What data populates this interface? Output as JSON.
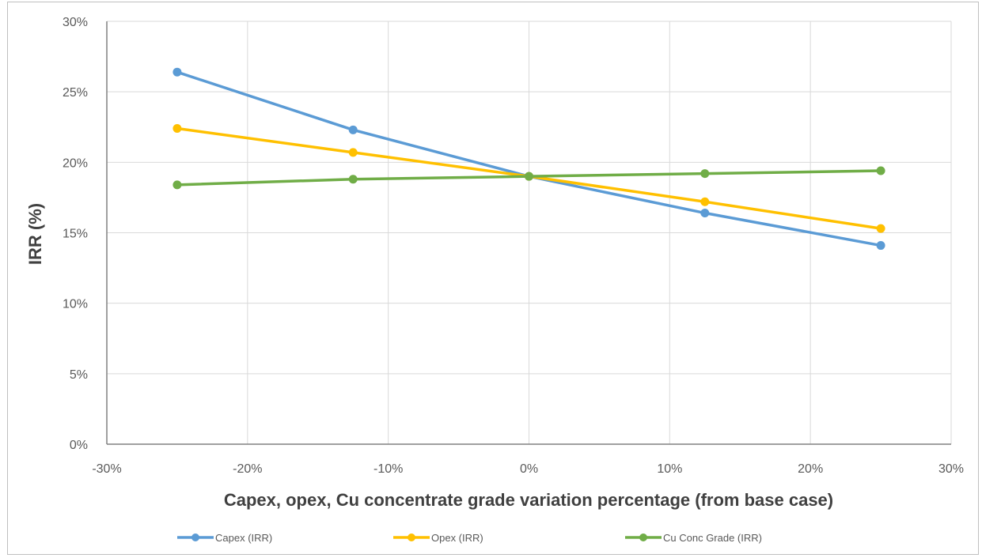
{
  "chart_data": {
    "type": "line",
    "title": "",
    "xlabel": "Capex, opex, Cu concentrate grade variation percentage (from base case)",
    "ylabel": "IRR (%)",
    "xlim": [
      -30,
      30
    ],
    "ylim": [
      0,
      30
    ],
    "x_ticks": [
      -30,
      -20,
      -10,
      0,
      10,
      20,
      30
    ],
    "y_ticks": [
      0,
      5,
      10,
      15,
      20,
      25,
      30
    ],
    "x_tick_labels": [
      "-30%",
      "-20%",
      "-10%",
      "0%",
      "10%",
      "20%",
      "30%"
    ],
    "y_tick_labels": [
      "0%",
      "5%",
      "10%",
      "15%",
      "20%",
      "25%",
      "30%"
    ],
    "grid": true,
    "legend_position": "bottom",
    "x": [
      -25,
      -12.5,
      0,
      12.5,
      25
    ],
    "series": [
      {
        "name": "Capex (IRR)",
        "color": "#5b9bd5",
        "values": [
          26.4,
          22.3,
          19.0,
          16.4,
          14.1
        ]
      },
      {
        "name": "Opex (IRR)",
        "color": "#ffc000",
        "values": [
          22.4,
          20.7,
          19.0,
          17.2,
          15.3
        ]
      },
      {
        "name": "Cu Conc Grade (IRR)",
        "color": "#70ad47",
        "values": [
          18.4,
          18.8,
          19.0,
          19.2,
          19.4
        ]
      }
    ]
  }
}
